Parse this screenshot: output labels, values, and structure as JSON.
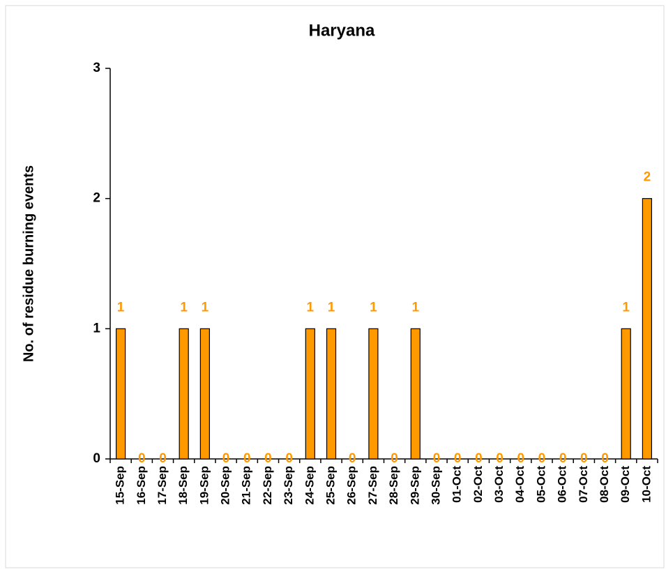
{
  "chart_data": {
    "type": "bar",
    "title": "Haryana",
    "y_label": "No. of residue burning events",
    "categories": [
      "15-Sep",
      "16-Sep",
      "17-Sep",
      "18-Sep",
      "19-Sep",
      "20-Sep",
      "21-Sep",
      "22-Sep",
      "23-Sep",
      "24-Sep",
      "25-Sep",
      "26-Sep",
      "27-Sep",
      "28-Sep",
      "29-Sep",
      "30-Sep",
      "01-Oct",
      "02-Oct",
      "03-Oct",
      "04-Oct",
      "05-Oct",
      "06-Oct",
      "07-Oct",
      "08-Oct",
      "09-Oct",
      "10-Oct"
    ],
    "values": [
      1,
      0,
      0,
      1,
      1,
      0,
      0,
      0,
      0,
      1,
      1,
      0,
      1,
      0,
      1,
      0,
      0,
      0,
      0,
      0,
      0,
      0,
      0,
      0,
      1,
      2
    ],
    "color": "#ff9900",
    "label_color": "#ff9900",
    "ylim": [
      0,
      3
    ],
    "yticks": [
      0,
      1,
      2,
      3
    ],
    "grid": false
  }
}
